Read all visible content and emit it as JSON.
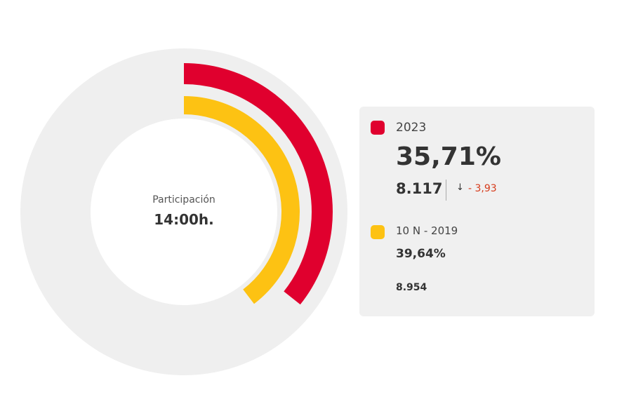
{
  "chart_data": {
    "type": "radial-bar",
    "title": "Participación",
    "subtitle": "14:00h.",
    "max": 100,
    "series": [
      {
        "name": "2023",
        "value": 35.71,
        "value_label": "35,71%",
        "count": "8.117",
        "change": "- 3,93",
        "color": "#e0002e"
      },
      {
        "name": "10 N - 2019",
        "value": 39.64,
        "value_label": "39,64%",
        "count": "8.954",
        "color": "#fdc213"
      }
    ]
  },
  "colors": {
    "track": "#efefef",
    "panel": "#f0f0f0",
    "negative_change": "#d63a1a"
  },
  "icons": {
    "change_direction": "down-arrow-icon"
  },
  "down_arrow_glyph": "↓"
}
